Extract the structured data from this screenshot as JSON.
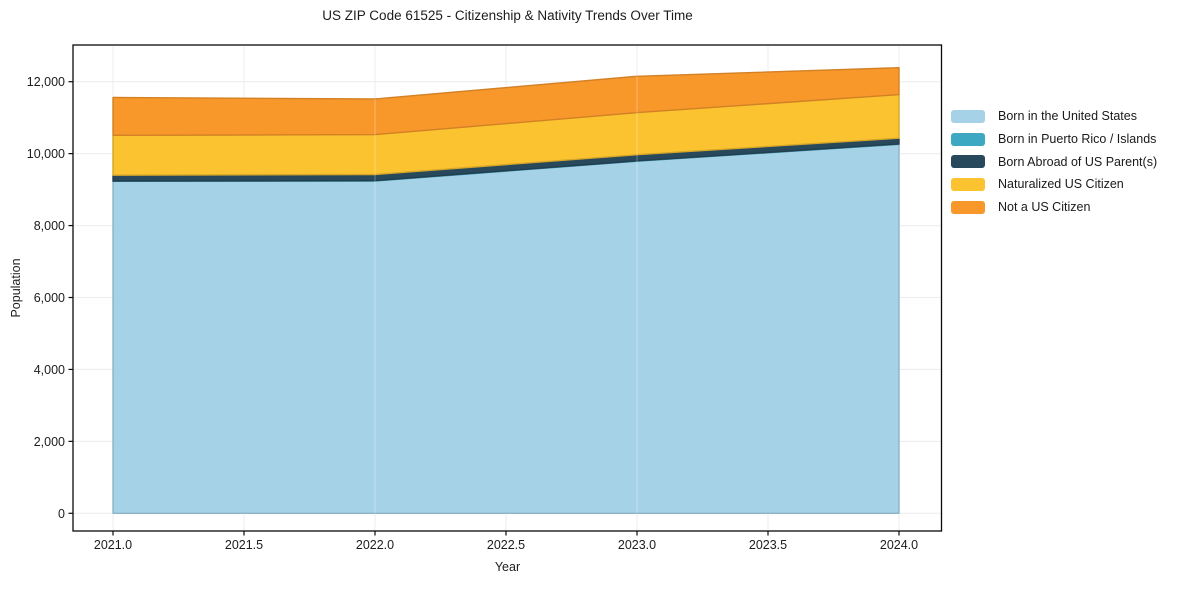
{
  "title": "US ZIP Code 61525 - Citizenship & Nativity Trends Over Time",
  "xlabel": "Year",
  "ylabel": "Population",
  "chart_data": {
    "type": "area",
    "stacked": true,
    "title": "US ZIP Code 61525 - Citizenship & Nativity Trends Over Time",
    "xlabel": "Year",
    "ylabel": "Population",
    "x": [
      2021,
      2022,
      2023,
      2024
    ],
    "series": [
      {
        "name": "Born in the United States",
        "color": "#a6d2e8",
        "values": [
          9230,
          9240,
          9790,
          10260
        ]
      },
      {
        "name": "Born in Puerto Rico / Islands",
        "color": "#3da8c2",
        "values": [
          10,
          10,
          10,
          10
        ]
      },
      {
        "name": "Born Abroad of US Parent(s)",
        "color": "#28495c",
        "values": [
          160,
          170,
          170,
          160
        ]
      },
      {
        "name": "Naturalized US Citizen",
        "color": "#fcc330",
        "values": [
          1110,
          1110,
          1170,
          1210
        ]
      },
      {
        "name": "Not a US Citizen",
        "color": "#f8982b",
        "values": [
          1050,
          990,
          1010,
          750
        ]
      }
    ],
    "totals": [
      11560,
      11520,
      12150,
      12390
    ],
    "x_ticks": [
      2021.0,
      2021.5,
      2022.0,
      2022.5,
      2023.0,
      2023.5,
      2024.0
    ],
    "x_tick_labels": [
      "2021.0",
      "2021.5",
      "2022.0",
      "2022.5",
      "2023.0",
      "2023.5",
      "2024.0"
    ],
    "y_ticks": [
      0,
      2000,
      4000,
      6000,
      8000,
      10000,
      12000
    ],
    "y_tick_labels": [
      "0",
      "2,000",
      "4,000",
      "6,000",
      "8,000",
      "10,000",
      "12,000"
    ],
    "xlim": [
      2020.85,
      2024.16
    ],
    "ylim": [
      -490,
      13020
    ],
    "grid": true,
    "legend_position": "right-outside"
  }
}
